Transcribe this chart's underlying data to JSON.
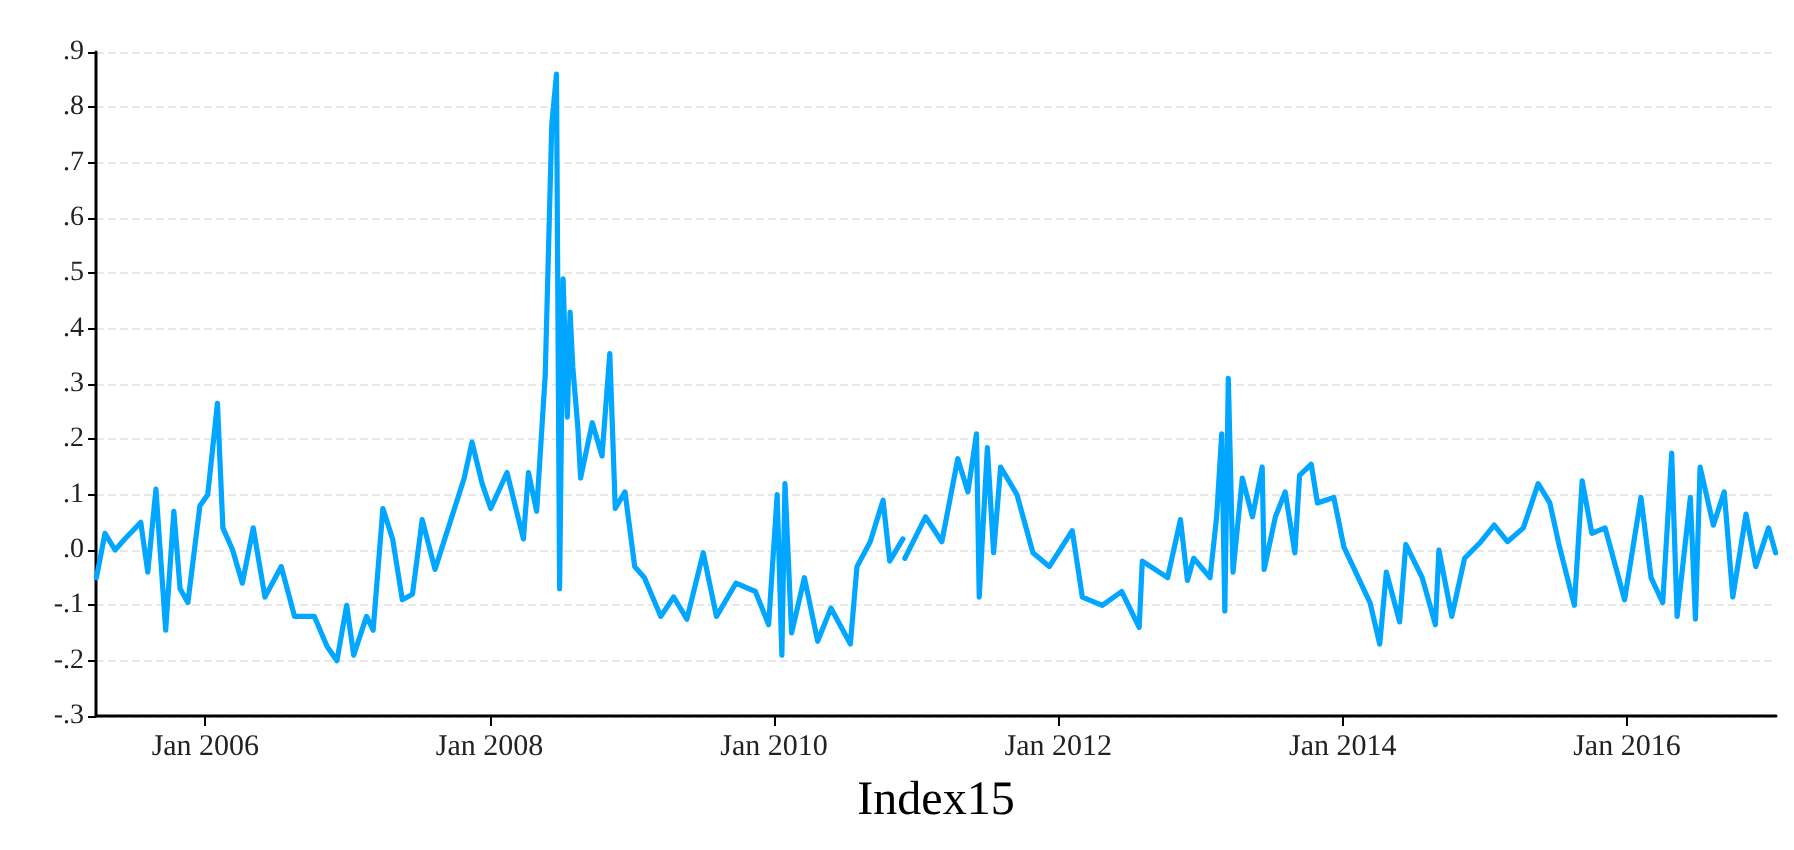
{
  "chart_data": {
    "type": "line",
    "xlabel": "Index15",
    "x": [
      "2005-03-27",
      "2005-04-18",
      "2005-05-14",
      "2005-06-08",
      "2005-07-19",
      "2005-08-06",
      "2005-08-27",
      "2005-09-21",
      "2005-10-12",
      "2005-10-28",
      "2005-11-17",
      "2005-12-18",
      "2006-01-07",
      "2006-02-01",
      "2006-02-15",
      "2006-03-12",
      "2006-04-06",
      "2006-05-04",
      "2006-06-03",
      "2006-07-15",
      "2006-08-18",
      "2006-10-08",
      "2006-11-10",
      "2006-12-05",
      "2006-12-30",
      "2007-01-17",
      "2007-02-19",
      "2007-03-08",
      "2007-04-02",
      "2007-04-27",
      "2007-05-22",
      "2007-06-17",
      "2007-07-12",
      "2007-08-14",
      "2007-10-03",
      "2007-10-28",
      "2007-11-17",
      "2007-12-13",
      "2008-01-04",
      "2008-02-15",
      "2008-03-28",
      "2008-04-10",
      "2008-05-01",
      "2008-05-23",
      "2008-06-09",
      "2008-06-21",
      "2008-06-29",
      "2008-07-08",
      "2008-07-19",
      "2008-07-26",
      "2008-08-02",
      "2008-08-15",
      "2008-08-22",
      "2008-09-21",
      "2008-10-16",
      "2008-11-05",
      "2008-11-19",
      "2008-12-14",
      "2009-01-08",
      "2009-02-02",
      "2009-03-16",
      "2009-04-18",
      "2009-05-22",
      "2009-07-03",
      "2009-08-06",
      "2009-09-25",
      "2009-11-14",
      "2009-12-18",
      "2010-01-09",
      "2010-01-21",
      "2010-01-29",
      "2010-02-15",
      "2010-03-20",
      "2010-04-23",
      "2010-05-27",
      "2010-07-16",
      "2010-08-02",
      "2010-09-05",
      "2010-10-08",
      "2010-10-25",
      "2010-11-28",
      "2010-11-30",
      "2010-12-03",
      "2011-01-25",
      "2011-03-08",
      "2011-04-18",
      "2011-05-14",
      "2011-06-05",
      "2011-06-12",
      "2011-07-03",
      "2011-07-19",
      "2011-08-06",
      "2011-09-17",
      "2011-10-28",
      "2011-12-09",
      "2012-02-06",
      "2012-03-03",
      "2012-04-23",
      "2012-06-12",
      "2012-07-27",
      "2012-08-04",
      "2012-10-08",
      "2012-11-10",
      "2012-11-28",
      "2012-12-14",
      "2013-01-25",
      "2013-02-11",
      "2013-02-24",
      "2013-03-04",
      "2013-03-13",
      "2013-03-25",
      "2013-04-18",
      "2013-05-14",
      "2013-06-08",
      "2013-06-13",
      "2013-07-12",
      "2013-08-06",
      "2013-08-31",
      "2013-09-12",
      "2013-10-12",
      "2013-10-28",
      "2013-12-09",
      "2014-01-04",
      "2014-03-12",
      "2014-04-06",
      "2014-04-23",
      "2014-05-27",
      "2014-06-12",
      "2014-07-24",
      "2014-08-27",
      "2014-09-05",
      "2014-10-08",
      "2014-11-10",
      "2014-12-22",
      "2015-01-25",
      "2015-02-28",
      "2015-04-10",
      "2015-05-18",
      "2015-06-17",
      "2015-07-12",
      "2015-08-19",
      "2015-09-08",
      "2015-10-03",
      "2015-11-06",
      "2015-12-26",
      "2016-02-06",
      "2016-03-03",
      "2016-04-02",
      "2016-04-25",
      "2016-05-09",
      "2016-06-12",
      "2016-06-25",
      "2016-07-07",
      "2016-08-10",
      "2016-09-07",
      "2016-09-29",
      "2016-11-02",
      "2016-11-27",
      "2016-12-30",
      "2017-01-17"
    ],
    "series": [
      {
        "color": "#00a6ff",
        "values": [
          -0.05,
          0.03,
          0.0,
          0.02,
          0.05,
          -0.04,
          0.11,
          -0.145,
          0.07,
          -0.07,
          -0.095,
          0.08,
          0.1,
          0.265,
          0.04,
          0.0,
          -0.06,
          0.04,
          -0.085,
          -0.03,
          -0.12,
          -0.12,
          -0.175,
          -0.2,
          -0.1,
          -0.19,
          -0.12,
          -0.145,
          0.075,
          0.02,
          -0.09,
          -0.08,
          0.055,
          -0.035,
          0.075,
          0.13,
          0.195,
          0.12,
          0.075,
          0.14,
          0.02,
          0.14,
          0.07,
          0.315,
          0.77,
          0.86,
          -0.07,
          0.49,
          0.24,
          0.43,
          0.33,
          0.22,
          0.13,
          0.23,
          0.17,
          0.355,
          0.075,
          0.105,
          -0.03,
          -0.05,
          -0.12,
          -0.085,
          -0.125,
          -0.005,
          -0.12,
          -0.06,
          -0.075,
          -0.135,
          0.1,
          -0.19,
          0.12,
          -0.15,
          -0.05,
          -0.165,
          -0.105,
          -0.17,
          -0.03,
          0.015,
          0.09,
          -0.02,
          0.02,
          null,
          -0.015,
          0.06,
          0.015,
          0.165,
          0.105,
          0.21,
          -0.085,
          0.185,
          -0.005,
          0.15,
          0.1,
          -0.005,
          -0.03,
          0.035,
          -0.085,
          -0.1,
          -0.075,
          -0.14,
          -0.02,
          -0.05,
          0.055,
          -0.055,
          -0.015,
          -0.05,
          0.06,
          0.21,
          -0.11,
          0.31,
          -0.04,
          0.13,
          0.06,
          0.15,
          -0.035,
          0.06,
          0.105,
          -0.005,
          0.135,
          0.155,
          0.085,
          0.095,
          0.005,
          -0.095,
          -0.17,
          -0.04,
          -0.13,
          0.01,
          -0.05,
          -0.135,
          0.0,
          -0.12,
          -0.015,
          0.015,
          0.045,
          0.015,
          0.04,
          0.12,
          0.085,
          0.005,
          -0.1,
          0.125,
          0.03,
          0.04,
          -0.09,
          0.095,
          -0.05,
          -0.095,
          0.175,
          -0.12,
          0.095,
          -0.125,
          0.15,
          0.045,
          0.105,
          -0.085,
          0.065,
          -0.03,
          0.04,
          -0.005
        ]
      }
    ],
    "xlim": [
      "2005-03-26",
      "2017-01-18"
    ],
    "xticks": [
      {
        "value": "2006-01-01",
        "label": "Jan 2006"
      },
      {
        "value": "2008-01-01",
        "label": "Jan 2008"
      },
      {
        "value": "2010-01-01",
        "label": "Jan 2010"
      },
      {
        "value": "2012-01-01",
        "label": "Jan 2012"
      },
      {
        "value": "2014-01-01",
        "label": "Jan 2014"
      },
      {
        "value": "2016-01-01",
        "label": "Jan 2016"
      }
    ],
    "ylim": [
      -0.3,
      0.9
    ],
    "yticks": [
      {
        "value": -0.3,
        "label": "-.3"
      },
      {
        "value": -0.2,
        "label": "-.2"
      },
      {
        "value": -0.1,
        "label": "-.1"
      },
      {
        "value": 0,
        "label": ".0"
      },
      {
        "value": 0.1,
        "label": ".1"
      },
      {
        "value": 0.2,
        "label": ".2"
      },
      {
        "value": 0.3,
        "label": ".3"
      },
      {
        "value": 0.4,
        "label": ".4"
      },
      {
        "value": 0.5,
        "label": ".5"
      },
      {
        "value": 0.6,
        "label": ".6"
      },
      {
        "value": 0.7,
        "label": ".7"
      },
      {
        "value": 0.8,
        "label": ".8"
      },
      {
        "value": 0.9,
        "label": ".9"
      }
    ],
    "grid": "y",
    "marker": "none",
    "line_style": "solid"
  }
}
